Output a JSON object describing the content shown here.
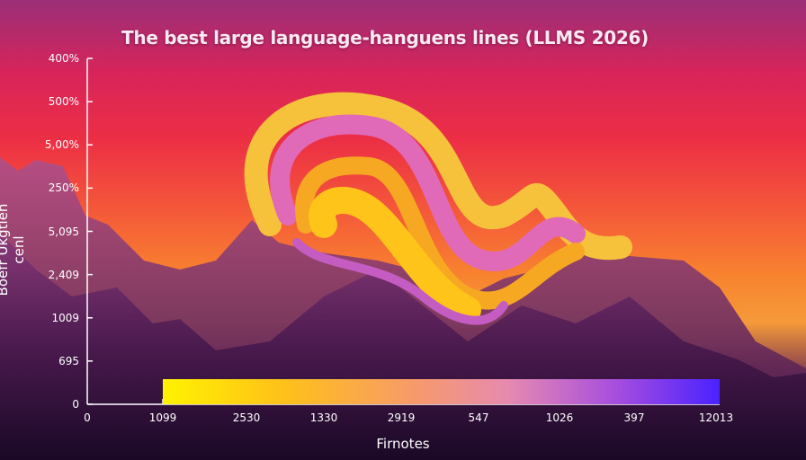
{
  "chart_data": {
    "type": "bar",
    "title": "The best large language-hanguens lines (LLMS 2026)",
    "ylabel": "Boefr Ukgtien cenl",
    "xlabel": "Firnotes",
    "yticks": [
      "400%",
      "500%",
      "5,00%",
      "250%",
      "5,095",
      "2,409",
      "1009",
      "695",
      "0"
    ],
    "xticks": [
      "0",
      "1099",
      "2530",
      "1330",
      "2919",
      "547",
      "1026",
      "397",
      "12013"
    ],
    "bar_gradient": [
      "#fff200",
      "#ffc01a",
      "#e68ab0",
      "#a44ce0",
      "#4a22ff"
    ],
    "grid": false
  }
}
